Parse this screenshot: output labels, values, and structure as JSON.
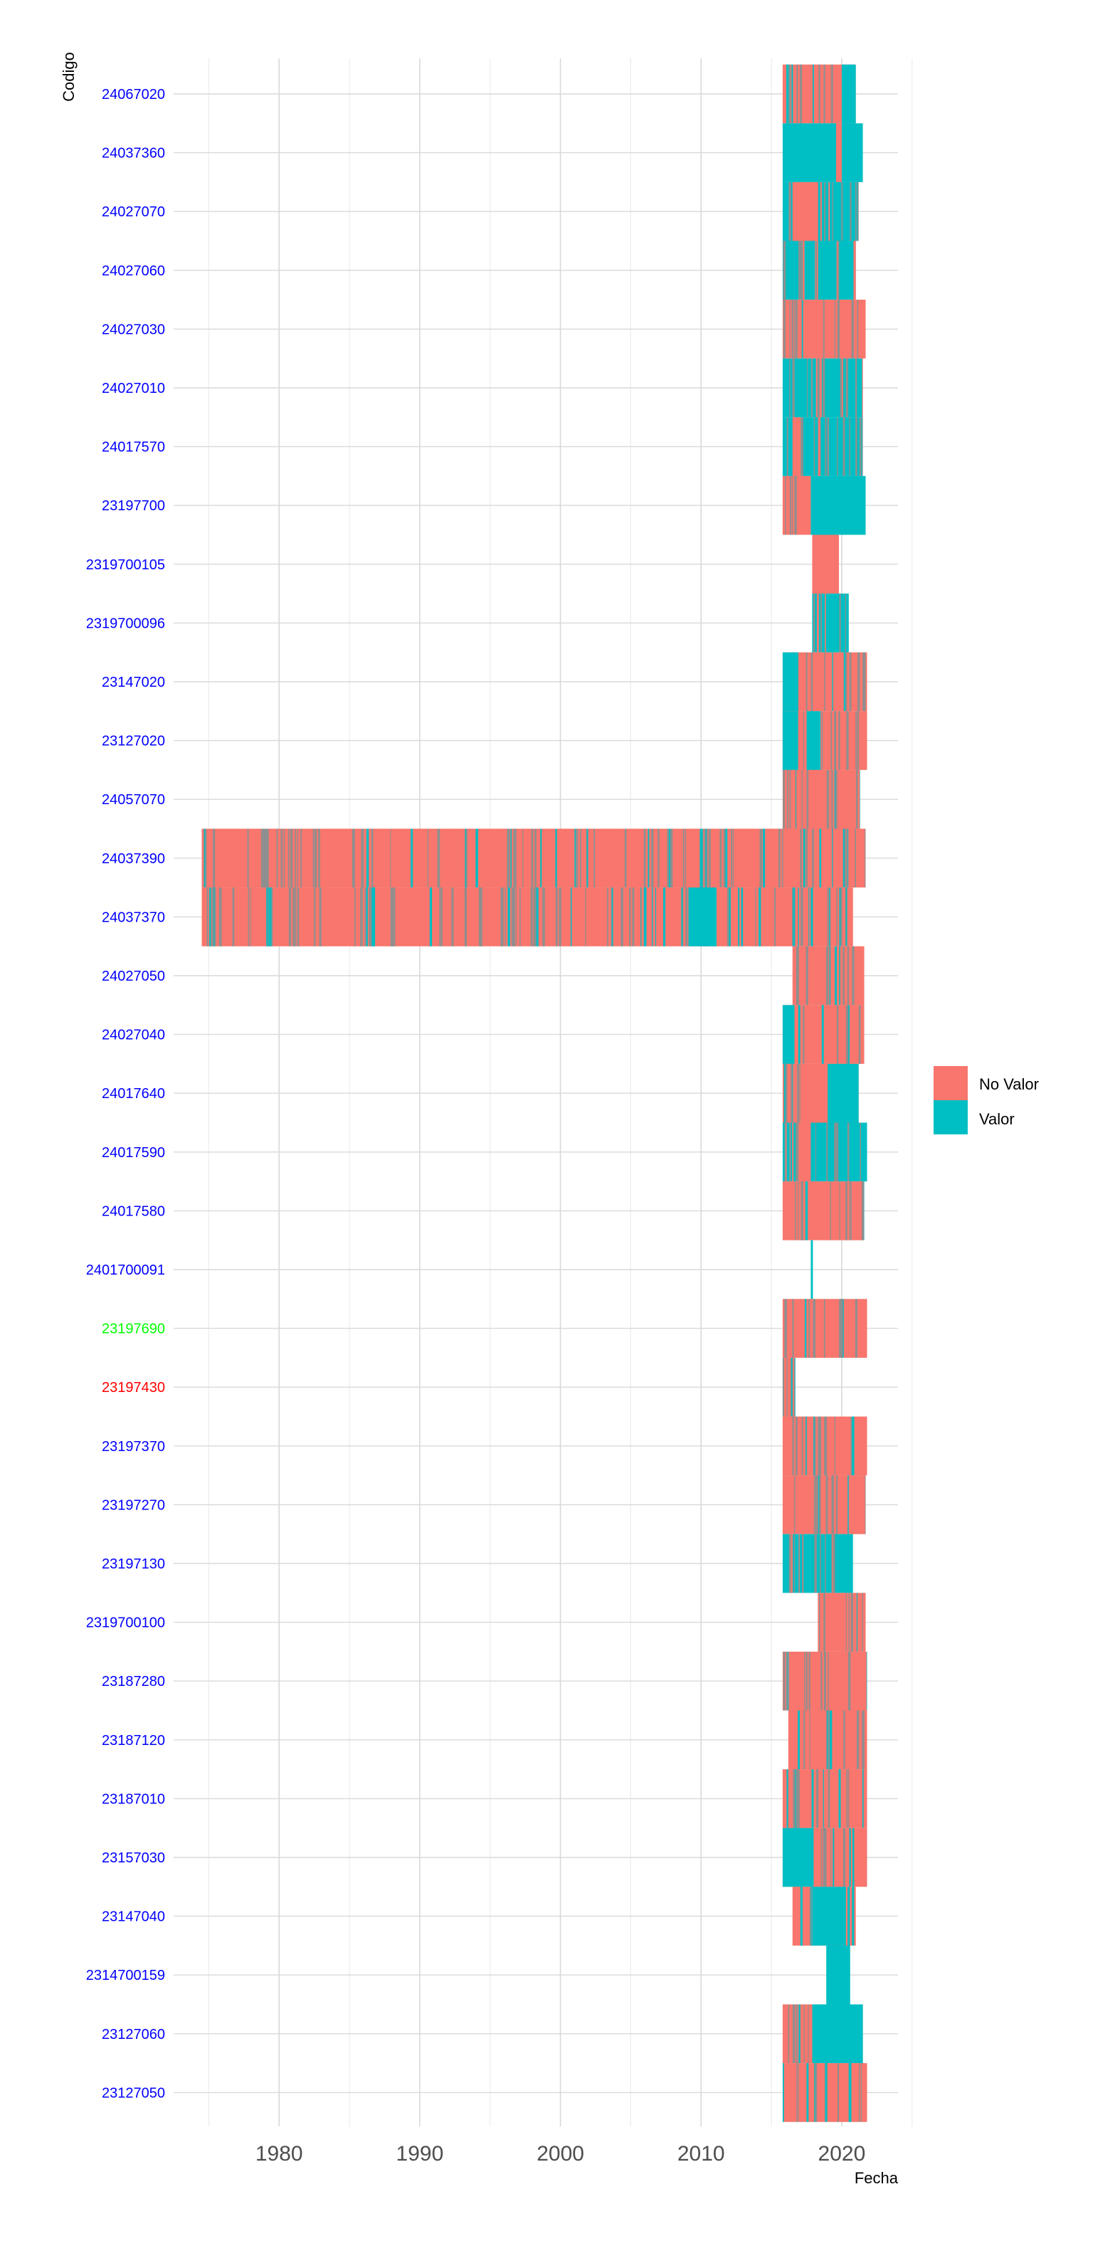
{
  "chart_data": {
    "type": "heatmap",
    "xlabel": "Fecha",
    "ylabel": "Codigo",
    "xlim": [
      1972.5,
      2024
    ],
    "x_ticks": [
      "1980",
      "1990",
      "2000",
      "2010",
      "2020"
    ],
    "grid": true,
    "legend_position": "right",
    "legend": [
      {
        "label": "No Valor",
        "color": "#F8766D"
      },
      {
        "label": "Valor",
        "color": "#00BFC4"
      }
    ],
    "codes": [
      {
        "code": "24067020",
        "color": "#0000FF",
        "segments": [
          [
            2015.8,
            2021.0,
            "mix_red"
          ],
          [
            2020.0,
            2021.0,
            "cyan"
          ]
        ]
      },
      {
        "code": "24037360",
        "color": "#0000FF",
        "segments": [
          [
            2015.8,
            2021.5,
            "cyan"
          ],
          [
            2019.6,
            2020.0,
            "red"
          ]
        ]
      },
      {
        "code": "24027070",
        "color": "#0000FF",
        "segments": [
          [
            2015.8,
            2021.2,
            "mix_cyan"
          ],
          [
            2016.5,
            2018.3,
            "red"
          ]
        ]
      },
      {
        "code": "24027060",
        "color": "#0000FF",
        "segments": [
          [
            2015.8,
            2021.0,
            "mix_cyan"
          ]
        ]
      },
      {
        "code": "24027030",
        "color": "#0000FF",
        "segments": [
          [
            2015.8,
            2021.7,
            "mix_red"
          ]
        ]
      },
      {
        "code": "24027010",
        "color": "#0000FF",
        "segments": [
          [
            2015.8,
            2021.5,
            "mix_cyan"
          ]
        ]
      },
      {
        "code": "24017570",
        "color": "#0000FF",
        "segments": [
          [
            2015.8,
            2021.5,
            "mix_cyan"
          ],
          [
            2016.5,
            2017.1,
            "red"
          ]
        ]
      },
      {
        "code": "23197700",
        "color": "#0000FF",
        "segments": [
          [
            2015.8,
            2017.8,
            "mix_red"
          ],
          [
            2017.8,
            2021.7,
            "cyan"
          ]
        ]
      },
      {
        "code": "2319700105",
        "color": "#0000FF",
        "segments": [
          [
            2017.9,
            2019.8,
            "red"
          ]
        ]
      },
      {
        "code": "2319700096",
        "color": "#0000FF",
        "segments": [
          [
            2017.9,
            2020.5,
            "mix_cyan"
          ]
        ]
      },
      {
        "code": "23147020",
        "color": "#0000FF",
        "segments": [
          [
            2015.8,
            2021.8,
            "mix_red"
          ],
          [
            2015.8,
            2016.9,
            "cyan"
          ]
        ]
      },
      {
        "code": "23127020",
        "color": "#0000FF",
        "segments": [
          [
            2015.8,
            2021.8,
            "mix_red"
          ],
          [
            2015.8,
            2016.9,
            "cyan"
          ],
          [
            2017.5,
            2018.5,
            "cyan"
          ]
        ]
      },
      {
        "code": "24057070",
        "color": "#0000FF",
        "segments": [
          [
            2015.8,
            2021.3,
            "mix_red"
          ]
        ]
      },
      {
        "code": "24037390",
        "color": "#0000FF",
        "segments": [
          [
            1974.5,
            2021.7,
            "mix_red"
          ]
        ]
      },
      {
        "code": "24037370",
        "color": "#0000FF",
        "segments": [
          [
            1974.5,
            2020.8,
            "mix_red"
          ],
          [
            2009.1,
            2011.1,
            "cyan"
          ]
        ]
      },
      {
        "code": "24027050",
        "color": "#0000FF",
        "segments": [
          [
            2016.5,
            2021.6,
            "mix_red"
          ]
        ]
      },
      {
        "code": "24027040",
        "color": "#0000FF",
        "segments": [
          [
            2015.8,
            2021.6,
            "mix_red"
          ],
          [
            2015.8,
            2016.6,
            "cyan"
          ]
        ]
      },
      {
        "code": "24017640",
        "color": "#0000FF",
        "segments": [
          [
            2015.8,
            2021.2,
            "mix_red"
          ],
          [
            2019.0,
            2021.2,
            "cyan"
          ]
        ]
      },
      {
        "code": "24017590",
        "color": "#0000FF",
        "segments": [
          [
            2015.8,
            2021.8,
            "mix_cyan"
          ],
          [
            2016.9,
            2017.8,
            "red"
          ]
        ]
      },
      {
        "code": "24017580",
        "color": "#0000FF",
        "segments": [
          [
            2015.8,
            2021.6,
            "mix_red"
          ]
        ]
      },
      {
        "code": "2401700091",
        "color": "#0000FF",
        "segments": [
          [
            2017.8,
            2017.95,
            "cyan"
          ]
        ]
      },
      {
        "code": "23197690",
        "color": "#00FF00",
        "segments": [
          [
            2015.8,
            2021.8,
            "mix_red"
          ]
        ]
      },
      {
        "code": "23197430",
        "color": "#FF0000",
        "segments": [
          [
            2015.8,
            2016.7,
            "mix_red"
          ]
        ]
      },
      {
        "code": "23197370",
        "color": "#0000FF",
        "segments": [
          [
            2015.8,
            2021.8,
            "mix_red"
          ]
        ]
      },
      {
        "code": "23197270",
        "color": "#0000FF",
        "segments": [
          [
            2015.8,
            2021.7,
            "mix_red"
          ]
        ]
      },
      {
        "code": "23197130",
        "color": "#0000FF",
        "segments": [
          [
            2015.8,
            2020.8,
            "mix_cyan"
          ]
        ]
      },
      {
        "code": "2319700100",
        "color": "#0000FF",
        "segments": [
          [
            2018.3,
            2021.7,
            "mix_red"
          ]
        ]
      },
      {
        "code": "23187280",
        "color": "#0000FF",
        "segments": [
          [
            2015.8,
            2021.8,
            "mix_red"
          ]
        ]
      },
      {
        "code": "23187120",
        "color": "#0000FF",
        "segments": [
          [
            2016.2,
            2021.8,
            "mix_red"
          ]
        ]
      },
      {
        "code": "23187010",
        "color": "#0000FF",
        "segments": [
          [
            2015.8,
            2021.8,
            "mix_red"
          ]
        ]
      },
      {
        "code": "23157030",
        "color": "#0000FF",
        "segments": [
          [
            2015.8,
            2021.8,
            "mix_red"
          ],
          [
            2015.8,
            2018.0,
            "cyan"
          ]
        ]
      },
      {
        "code": "23147040",
        "color": "#0000FF",
        "segments": [
          [
            2016.5,
            2021.0,
            "mix_red"
          ],
          [
            2017.9,
            2020.3,
            "cyan"
          ]
        ]
      },
      {
        "code": "2314700159",
        "color": "#0000FF",
        "segments": [
          [
            2018.9,
            2020.6,
            "cyan"
          ]
        ]
      },
      {
        "code": "23127060",
        "color": "#0000FF",
        "segments": [
          [
            2015.8,
            2021.5,
            "mix_red"
          ],
          [
            2017.9,
            2021.5,
            "cyan"
          ]
        ]
      },
      {
        "code": "23127050",
        "color": "#0000FF",
        "segments": [
          [
            2015.8,
            2021.8,
            "mix_red"
          ]
        ]
      }
    ]
  }
}
